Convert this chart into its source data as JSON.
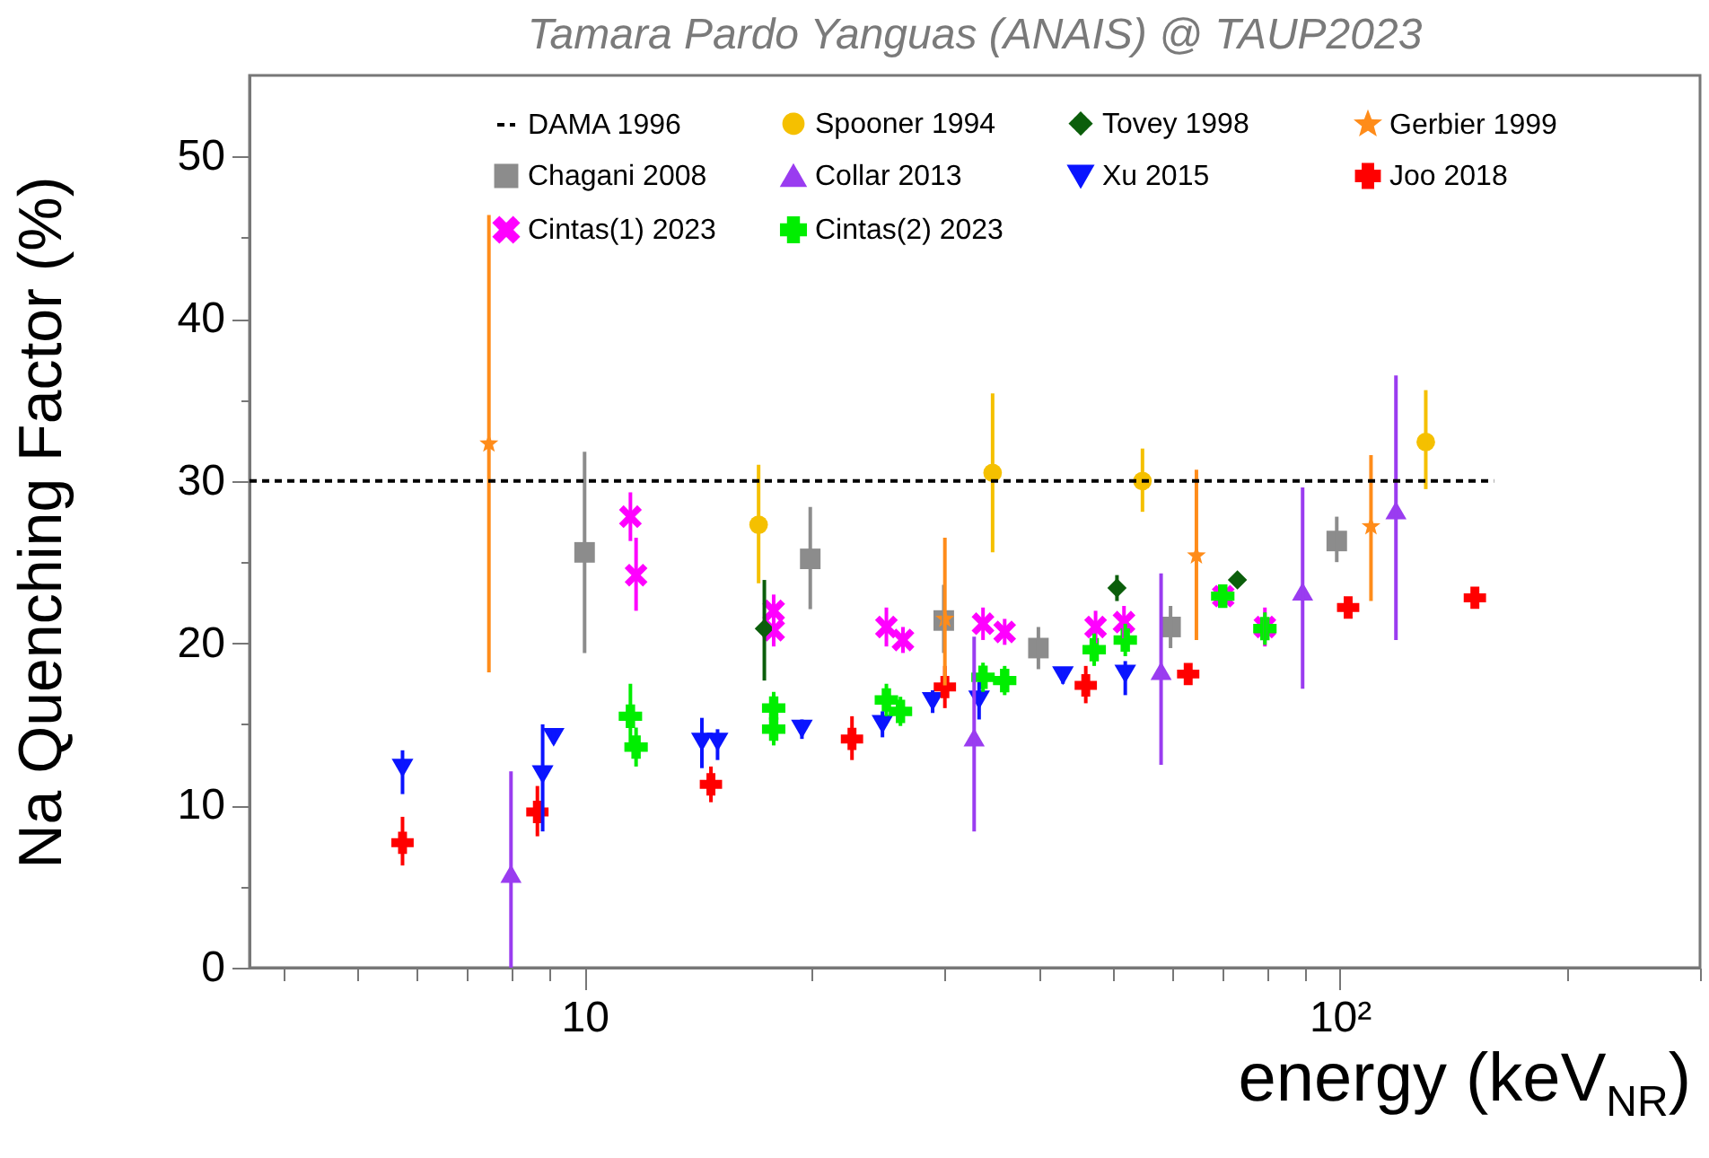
{
  "chart_data": {
    "type": "scatter",
    "title": "Tamara Pardo Yanguas (ANAIS) @ TAUP2023",
    "xlabel": "energy (keV$_{NR}$)",
    "ylabel": "Na Quenching Factor (%)",
    "log": "x",
    "xlim": [
      3.6,
      300
    ],
    "ylim": [
      0,
      55
    ],
    "xticks": [
      {
        "value": 4,
        "label": null
      },
      {
        "value": 5,
        "label": null
      },
      {
        "value": 6,
        "label": null
      },
      {
        "value": 7,
        "label": null
      },
      {
        "value": 8,
        "label": null
      },
      {
        "value": 9,
        "label": null
      },
      10,
      {
        "value": 20,
        "label": null
      },
      {
        "value": 30,
        "label": null
      },
      {
        "value": 40,
        "label": null
      },
      {
        "value": 50,
        "label": null
      },
      {
        "value": 60,
        "label": null
      },
      {
        "value": 70,
        "label": null
      },
      {
        "value": 80,
        "label": null
      },
      {
        "value": 90,
        "label": null
      },
      {
        "value": 100,
        "label": "10²"
      },
      {
        "value": 200,
        "label": null
      },
      {
        "value": 300,
        "label": null
      }
    ],
    "yticks": [
      0,
      {
        "value": 5,
        "label": null
      },
      10,
      {
        "value": 15,
        "label": null
      },
      20,
      {
        "value": 25,
        "label": null
      },
      30,
      {
        "value": 35,
        "label": null
      },
      40,
      {
        "value": 45,
        "label": null
      },
      50
    ],
    "grid": false,
    "legend": "top",
    "series": [
      {
        "name": "DAMA 1996",
        "type": "line",
        "color": "#000000",
        "line_style": "dashed",
        "marker": "none",
        "x": [
          3.6,
          160
        ],
        "values": [
          30,
          30
        ]
      },
      {
        "name": "Spooner 1994",
        "color": "#f5c000",
        "marker": "circle",
        "x": [
          17.0,
          34.7,
          54.8,
          130
        ],
        "values": [
          27.3,
          30.5,
          30.0,
          32.4
        ],
        "errors": [
          [
            23.7,
            31.0
          ],
          [
            25.6,
            35.4
          ],
          [
            28.1,
            32.0
          ],
          [
            29.5,
            35.6
          ]
        ]
      },
      {
        "name": "Tovey 1998",
        "color": "#0b5e0b",
        "marker": "diamond",
        "x": [
          17.3,
          50.7,
          73.2
        ],
        "values": [
          20.9,
          23.4,
          23.9
        ],
        "errors": [
          [
            17.7,
            23.9
          ],
          [
            22.6,
            24.2
          ],
          [
            23.5,
            24.3
          ]
        ]
      },
      {
        "name": "Gerbier 1999",
        "color": "#ff8c1a",
        "marker": "star",
        "x": [
          7.47,
          30.0,
          64.6,
          110
        ],
        "values": [
          32.3,
          21.5,
          25.4,
          27.2
        ],
        "errors": [
          [
            18.2,
            46.4
          ],
          [
            17.4,
            26.5
          ],
          [
            20.2,
            30.7
          ],
          [
            22.6,
            31.6
          ]
        ]
      },
      {
        "name": "Chagani 2008",
        "color": "#8c8c8c",
        "marker": "square",
        "x": [
          10.0,
          19.9,
          29.9,
          39.9,
          59.7,
          99.1
        ],
        "values": [
          25.6,
          25.2,
          21.4,
          19.7,
          21.0,
          26.3
        ],
        "errors": [
          [
            19.4,
            31.8
          ],
          [
            22.1,
            28.4
          ],
          [
            19.4,
            23.6
          ],
          [
            18.4,
            21.0
          ],
          [
            19.7,
            22.3
          ],
          [
            25.0,
            27.8
          ]
        ]
      },
      {
        "name": "Collar 2013",
        "color": "#9a3cf0",
        "marker": "triangle",
        "x": [
          7.99,
          32.8,
          58.0,
          89.3,
          118.7
        ],
        "values": [
          5.8,
          14.2,
          18.3,
          23.2,
          28.2
        ],
        "errors": [
          [
            0,
            12.1
          ],
          [
            8.4,
            20.4
          ],
          [
            12.5,
            24.3
          ],
          [
            17.2,
            29.6
          ],
          [
            20.2,
            36.5
          ]
        ]
      },
      {
        "name": "Xu 2015",
        "color": "#0a14ff",
        "marker": "triangle-down",
        "x": [
          5.74,
          8.8,
          9.1,
          14.3,
          15.0,
          19.4,
          24.8,
          28.9,
          33.3,
          43.0,
          52.0
        ],
        "values": [
          12.3,
          11.9,
          14.2,
          13.9,
          13.9,
          14.7,
          15.0,
          16.4,
          16.5,
          18.0,
          18.1
        ],
        "errors": [
          [
            10.7,
            13.4
          ],
          [
            8.4,
            15.0
          ],
          [
            13.8,
            14.6
          ],
          [
            12.3,
            15.4
          ],
          [
            12.8,
            14.7
          ],
          [
            14.1,
            15.3
          ],
          [
            14.2,
            15.8
          ],
          [
            15.7,
            17.1
          ],
          [
            15.3,
            17.6
          ],
          [
            17.5,
            18.5
          ],
          [
            16.8,
            18.9
          ]
        ]
      },
      {
        "name": "Joo 2018",
        "color": "#ff0000",
        "marker": "plus",
        "x": [
          5.74,
          8.66,
          14.7,
          22.6,
          30.0,
          46.1,
          63.0,
          102.6,
          151
        ],
        "values": [
          7.7,
          9.6,
          11.3,
          14.1,
          17.3,
          17.4,
          18.1,
          22.2,
          22.8
        ],
        "errors": [
          [
            6.3,
            9.3
          ],
          [
            8.1,
            11.2
          ],
          [
            10.2,
            12.4
          ],
          [
            12.8,
            15.5
          ],
          [
            16.0,
            18.6
          ],
          [
            16.3,
            18.6
          ],
          [
            17.6,
            18.6
          ],
          [
            21.6,
            22.8
          ],
          [
            22.2,
            23.4
          ]
        ]
      },
      {
        "name": "Cintas(1) 2023",
        "color": "#ff00ff",
        "marker": "cross",
        "x": [
          11.5,
          11.7,
          17.8,
          17.8,
          25.1,
          26.4,
          33.7,
          36.0,
          47.5,
          51.8,
          70.1,
          79.6
        ],
        "values": [
          27.8,
          24.2,
          22.0,
          20.8,
          21.0,
          20.2,
          21.2,
          20.7,
          21.0,
          21.3,
          22.9,
          21.0
        ],
        "errors": [
          [
            26.3,
            29.3
          ],
          [
            22.0,
            26.5
          ],
          [
            21.0,
            23.0
          ],
          [
            19.8,
            21.8
          ],
          [
            19.8,
            22.2
          ],
          [
            19.4,
            21.0
          ],
          [
            20.2,
            22.2
          ],
          [
            19.9,
            21.5
          ],
          [
            20.0,
            22.0
          ],
          [
            20.3,
            22.3
          ],
          null,
          [
            19.8,
            22.2
          ]
        ]
      },
      {
        "name": "Cintas(2) 2023",
        "color": "#00ee00",
        "marker": "plus",
        "x": [
          11.5,
          11.7,
          17.8,
          17.8,
          25.1,
          26.2,
          33.7,
          36.0,
          47.3,
          52.0,
          70.0,
          79.6
        ],
        "values": [
          15.5,
          13.6,
          16.0,
          14.7,
          16.5,
          15.8,
          17.9,
          17.7,
          19.6,
          20.2,
          22.9,
          20.9
        ],
        "errors": [
          [
            13.6,
            17.5
          ],
          [
            12.4,
            14.8
          ],
          [
            15.0,
            17.0
          ],
          [
            13.7,
            15.7
          ],
          [
            15.5,
            17.5
          ],
          [
            14.9,
            16.7
          ],
          [
            17.0,
            18.8
          ],
          [
            16.8,
            18.6
          ],
          [
            18.6,
            20.6
          ],
          [
            19.2,
            21.2
          ],
          null,
          [
            19.9,
            21.9
          ]
        ]
      }
    ]
  }
}
